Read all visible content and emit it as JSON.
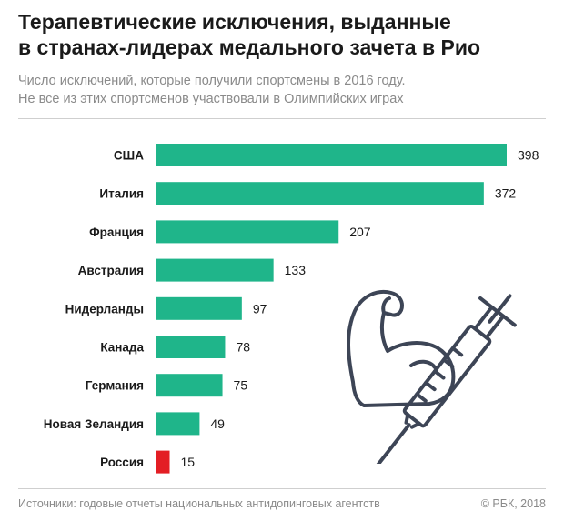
{
  "title_line1": "Терапевтические исключения, выданные",
  "title_line2": "в странах-лидерах медального зачета в Рио",
  "subtitle_line1": "Число исключений, которые получили спортсмены в 2016 году.",
  "subtitle_line2": "Не все из этих спортсменов участвовали в Олимпийских играх",
  "footer_source": "Источники: годовые отчеты национальных антидопинговых агентств",
  "footer_copyright": "© РБК, 2018",
  "colors": {
    "bar": "#1fb58a",
    "highlight": "#e31e24",
    "illustration": "#3d4556"
  },
  "illustration_icon": "flexed-arm-with-syringe-icon",
  "chart_data": {
    "type": "bar",
    "orientation": "horizontal",
    "categories": [
      "США",
      "Италия",
      "Франция",
      "Австралия",
      "Нидерланды",
      "Канада",
      "Германия",
      "Новая Зеландия",
      "Россия"
    ],
    "values": [
      398,
      372,
      207,
      133,
      97,
      78,
      75,
      49,
      15
    ],
    "highlight_category": "Россия",
    "xlim": [
      0,
      398
    ],
    "grid": false,
    "legend": "none"
  }
}
